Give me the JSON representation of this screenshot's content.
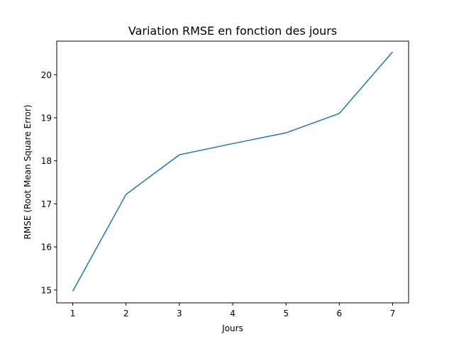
{
  "chart_data": {
    "type": "line",
    "title": "Variation RMSE en fonction des jours",
    "xlabel": "Jours",
    "ylabel": "RMSE (Root Mean Square Error)",
    "xlim": [
      0.7,
      7.3
    ],
    "ylim": [
      14.7,
      20.78
    ],
    "xticks": [
      1,
      2,
      3,
      4,
      5,
      6,
      7
    ],
    "yticks": [
      15,
      16,
      17,
      18,
      19,
      20
    ],
    "grid": false,
    "series": [
      {
        "color": "#1f77b4",
        "x": [
          1,
          2,
          3,
          4,
          5,
          6,
          7
        ],
        "y": [
          14.97,
          17.22,
          18.14,
          18.4,
          18.65,
          19.1,
          20.53
        ]
      }
    ]
  }
}
